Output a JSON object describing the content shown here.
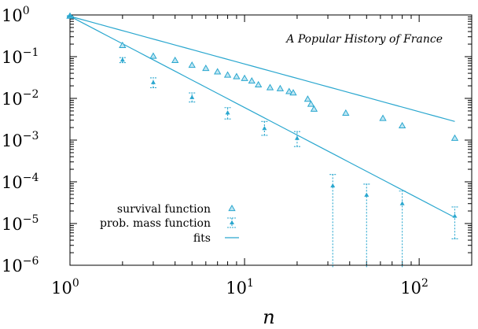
{
  "chart_data": {
    "type": "scatter",
    "title": "A Popular History of France",
    "xlabel": "n",
    "ylabel": "",
    "xscale": "log",
    "yscale": "log",
    "xlim": [
      1,
      200
    ],
    "ylim": [
      1e-06,
      1
    ],
    "x_ticks": [
      {
        "value": 1,
        "base": "10",
        "exp": "0"
      },
      {
        "value": 10,
        "base": "10",
        "exp": "1"
      },
      {
        "value": 100,
        "base": "10",
        "exp": "2"
      }
    ],
    "y_ticks": [
      {
        "value": 1,
        "base": "10",
        "exp": "0"
      },
      {
        "value": 0.1,
        "base": "10",
        "exp": "−1"
      },
      {
        "value": 0.01,
        "base": "10",
        "exp": "−2"
      },
      {
        "value": 0.001,
        "base": "10",
        "exp": "−3"
      },
      {
        "value": 0.0001,
        "base": "10",
        "exp": "−4"
      },
      {
        "value": 1e-05,
        "base": "10",
        "exp": "−5"
      },
      {
        "value": 1e-06,
        "base": "10",
        "exp": "−6"
      }
    ],
    "legend_position": "bottom-left",
    "colors": {
      "series": "#2aa7cf"
    },
    "series": [
      {
        "name": "survival function",
        "marker": "triangle-open",
        "points": [
          {
            "x": 1,
            "y": 0.93
          },
          {
            "x": 2,
            "y": 0.185
          },
          {
            "x": 3,
            "y": 0.102
          },
          {
            "x": 4,
            "y": 0.081
          },
          {
            "x": 5,
            "y": 0.062
          },
          {
            "x": 6,
            "y": 0.052
          },
          {
            "x": 7,
            "y": 0.043
          },
          {
            "x": 8,
            "y": 0.036
          },
          {
            "x": 9,
            "y": 0.033
          },
          {
            "x": 10,
            "y": 0.03
          },
          {
            "x": 11,
            "y": 0.026
          },
          {
            "x": 12,
            "y": 0.021
          },
          {
            "x": 14,
            "y": 0.018
          },
          {
            "x": 16,
            "y": 0.017
          },
          {
            "x": 18,
            "y": 0.0145
          },
          {
            "x": 19,
            "y": 0.0135
          },
          {
            "x": 23,
            "y": 0.0095
          },
          {
            "x": 24,
            "y": 0.0072
          },
          {
            "x": 25,
            "y": 0.0055
          },
          {
            "x": 38,
            "y": 0.0044
          },
          {
            "x": 62,
            "y": 0.0033
          },
          {
            "x": 80,
            "y": 0.0022
          },
          {
            "x": 160,
            "y": 0.0011
          }
        ]
      },
      {
        "name": "prob. mass function",
        "marker": "triangle-filled-errorbar",
        "points": [
          {
            "x": 1,
            "y": 0.93,
            "lo": 0.9,
            "hi": 0.96
          },
          {
            "x": 2,
            "y": 0.083,
            "lo": 0.072,
            "hi": 0.095
          },
          {
            "x": 3,
            "y": 0.024,
            "lo": 0.018,
            "hi": 0.031
          },
          {
            "x": 5,
            "y": 0.0105,
            "lo": 0.0082,
            "hi": 0.0135
          },
          {
            "x": 8,
            "y": 0.0045,
            "lo": 0.0032,
            "hi": 0.006
          },
          {
            "x": 13,
            "y": 0.0019,
            "lo": 0.0013,
            "hi": 0.0028
          },
          {
            "x": 20,
            "y": 0.0011,
            "lo": 0.0007,
            "hi": 0.0016
          },
          {
            "x": 32,
            "y": 8e-05,
            "lo": 9e-07,
            "hi": 0.00015
          },
          {
            "x": 50,
            "y": 4.8e-05,
            "lo": 9e-07,
            "hi": 8.8e-05
          },
          {
            "x": 80,
            "y": 3e-05,
            "lo": 9e-07,
            "hi": 6e-05
          },
          {
            "x": 160,
            "y": 1.5e-05,
            "lo": 4.3e-06,
            "hi": 2.5e-05
          }
        ]
      },
      {
        "name": "fits",
        "marker": "line",
        "lines": [
          {
            "x": [
              1,
              160
            ],
            "y": [
              0.93,
              0.0028
            ]
          },
          {
            "x": [
              1,
              160
            ],
            "y": [
              0.93,
              1.4e-05
            ]
          }
        ]
      }
    ]
  }
}
